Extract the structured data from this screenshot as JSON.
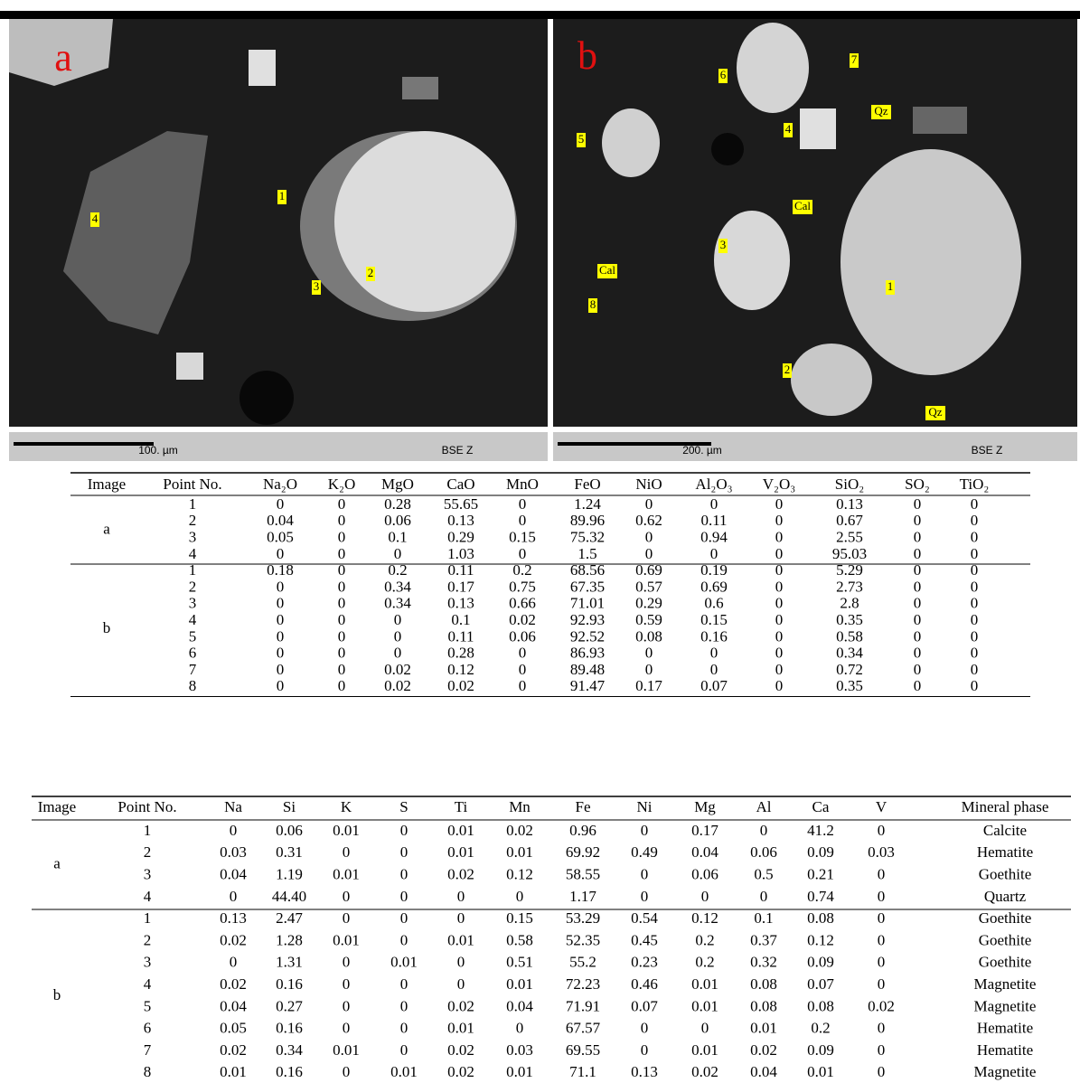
{
  "images": [
    {
      "letter": "a",
      "labels": [
        "1",
        "2",
        "3",
        "4"
      ],
      "scale": "100. µm",
      "mode": "BSE Z"
    },
    {
      "letter": "b",
      "labels": [
        "1",
        "2",
        "3",
        "4",
        "5",
        "6",
        "7",
        "8",
        "Cal",
        "Cal",
        "Qz",
        "Qz"
      ],
      "scale": "200. µm",
      "mode": "BSE Z"
    }
  ],
  "table1": {
    "headers": [
      "Image",
      "Point No.",
      "Na₂O",
      "K₂O",
      "MgO",
      "CaO",
      "MnO",
      "FeO",
      "NiO",
      "Al₂O₃",
      "V₂O₃",
      "SiO₂",
      "SO₂",
      "TiO₂"
    ],
    "groups": [
      {
        "image": "a",
        "rows": [
          [
            "1",
            "0",
            "0",
            "0.28",
            "55.65",
            "0",
            "1.24",
            "0",
            "0",
            "0",
            "0.13",
            "0",
            "0"
          ],
          [
            "2",
            "0.04",
            "0",
            "0.06",
            "0.13",
            "0",
            "89.96",
            "0.62",
            "0.11",
            "0",
            "0.67",
            "0",
            "0"
          ],
          [
            "3",
            "0.05",
            "0",
            "0.1",
            "0.29",
            "0.15",
            "75.32",
            "0",
            "0.94",
            "0",
            "2.55",
            "0",
            "0"
          ],
          [
            "4",
            "0",
            "0",
            "0",
            "1.03",
            "0",
            "1.5",
            "0",
            "0",
            "0",
            "95.03",
            "0",
            "0"
          ]
        ]
      },
      {
        "image": "b",
        "rows": [
          [
            "1",
            "0.18",
            "0",
            "0.2",
            "0.11",
            "0.2",
            "68.56",
            "0.69",
            "0.19",
            "0",
            "5.29",
            "0",
            "0"
          ],
          [
            "2",
            "0",
            "0",
            "0.34",
            "0.17",
            "0.75",
            "67.35",
            "0.57",
            "0.69",
            "0",
            "2.73",
            "0",
            "0"
          ],
          [
            "3",
            "0",
            "0",
            "0.34",
            "0.13",
            "0.66",
            "71.01",
            "0.29",
            "0.6",
            "0",
            "2.8",
            "0",
            "0"
          ],
          [
            "4",
            "0",
            "0",
            "0",
            "0.1",
            "0.02",
            "92.93",
            "0.59",
            "0.15",
            "0",
            "0.35",
            "0",
            "0"
          ],
          [
            "5",
            "0",
            "0",
            "0",
            "0.11",
            "0.06",
            "92.52",
            "0.08",
            "0.16",
            "0",
            "0.58",
            "0",
            "0"
          ],
          [
            "6",
            "0",
            "0",
            "0",
            "0.28",
            "0",
            "86.93",
            "0",
            "0",
            "0",
            "0.34",
            "0",
            "0"
          ],
          [
            "7",
            "0",
            "0",
            "0.02",
            "0.12",
            "0",
            "89.48",
            "0",
            "0",
            "0",
            "0.72",
            "0",
            "0"
          ],
          [
            "8",
            "0",
            "0",
            "0.02",
            "0.02",
            "0",
            "91.47",
            "0.17",
            "0.07",
            "0",
            "0.35",
            "0",
            "0"
          ]
        ]
      }
    ]
  },
  "table2": {
    "headers": [
      "Image",
      "Point No.",
      "Na",
      "Si",
      "K",
      "S",
      "Ti",
      "Mn",
      "Fe",
      "Ni",
      "Mg",
      "Al",
      "Ca",
      "V",
      "Mineral phase"
    ],
    "groups": [
      {
        "image": "a",
        "rows": [
          [
            "1",
            "0",
            "0.06",
            "0.01",
            "0",
            "0.01",
            "0.02",
            "0.96",
            "0",
            "0.17",
            "0",
            "41.2",
            "0",
            "Calcite"
          ],
          [
            "2",
            "0.03",
            "0.31",
            "0",
            "0",
            "0.01",
            "0.01",
            "69.92",
            "0.49",
            "0.04",
            "0.06",
            "0.09",
            "0.03",
            "Hematite"
          ],
          [
            "3",
            "0.04",
            "1.19",
            "0.01",
            "0",
            "0.02",
            "0.12",
            "58.55",
            "0",
            "0.06",
            "0.5",
            "0.21",
            "0",
            "Goethite"
          ],
          [
            "4",
            "0",
            "44.40",
            "0",
            "0",
            "0",
            "0",
            "1.17",
            "0",
            "0",
            "0",
            "0.74",
            "0",
            "Quartz"
          ]
        ]
      },
      {
        "image": "b",
        "rows": [
          [
            "1",
            "0.13",
            "2.47",
            "0",
            "0",
            "0",
            "0.15",
            "53.29",
            "0.54",
            "0.12",
            "0.1",
            "0.08",
            "0",
            "Goethite"
          ],
          [
            "2",
            "0.02",
            "1.28",
            "0.01",
            "0",
            "0.01",
            "0.58",
            "52.35",
            "0.45",
            "0.2",
            "0.37",
            "0.12",
            "0",
            "Goethite"
          ],
          [
            "3",
            "0",
            "1.31",
            "0",
            "0.01",
            "0",
            "0.51",
            "55.2",
            "0.23",
            "0.2",
            "0.32",
            "0.09",
            "0",
            "Goethite"
          ],
          [
            "4",
            "0.02",
            "0.16",
            "0",
            "0",
            "0",
            "0.01",
            "72.23",
            "0.46",
            "0.01",
            "0.08",
            "0.07",
            "0",
            "Magnetite"
          ],
          [
            "5",
            "0.04",
            "0.27",
            "0",
            "0",
            "0.02",
            "0.04",
            "71.91",
            "0.07",
            "0.01",
            "0.08",
            "0.08",
            "0.02",
            "Magnetite"
          ],
          [
            "6",
            "0.05",
            "0.16",
            "0",
            "0",
            "0.01",
            "0",
            "67.57",
            "0",
            "0",
            "0.01",
            "0.2",
            "0",
            "Hematite"
          ],
          [
            "7",
            "0.02",
            "0.34",
            "0.01",
            "0",
            "0.02",
            "0.03",
            "69.55",
            "0",
            "0.01",
            "0.02",
            "0.09",
            "0",
            "Hematite"
          ],
          [
            "8",
            "0.01",
            "0.16",
            "0",
            "0.01",
            "0.02",
            "0.01",
            "71.1",
            "0.13",
            "0.02",
            "0.04",
            "0.01",
            "0",
            "Magnetite"
          ]
        ]
      }
    ]
  }
}
